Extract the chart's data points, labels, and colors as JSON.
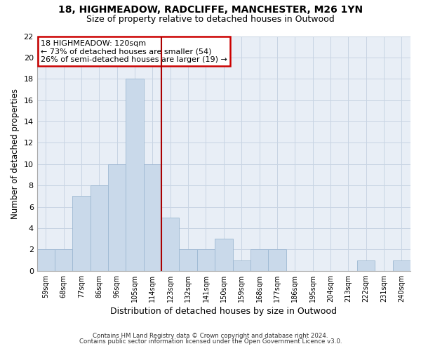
{
  "title1": "18, HIGHMEADOW, RADCLIFFE, MANCHESTER, M26 1YN",
  "title2": "Size of property relative to detached houses in Outwood",
  "xlabel": "Distribution of detached houses by size in Outwood",
  "ylabel": "Number of detached properties",
  "categories": [
    "59sqm",
    "68sqm",
    "77sqm",
    "86sqm",
    "96sqm",
    "105sqm",
    "114sqm",
    "123sqm",
    "132sqm",
    "141sqm",
    "150sqm",
    "159sqm",
    "168sqm",
    "177sqm",
    "186sqm",
    "195sqm",
    "204sqm",
    "213sqm",
    "222sqm",
    "231sqm",
    "240sqm"
  ],
  "values": [
    2,
    2,
    7,
    8,
    10,
    18,
    10,
    5,
    2,
    2,
    3,
    1,
    2,
    2,
    0,
    0,
    0,
    0,
    1,
    0,
    1
  ],
  "bar_color": "#c9d9ea",
  "bar_edgecolor": "#9db8d2",
  "vline_x": 6.5,
  "vline_color": "#aa0000",
  "annotation_line1": "18 HIGHMEADOW: 120sqm",
  "annotation_line2": "← 73% of detached houses are smaller (54)",
  "annotation_line3": "26% of semi-detached houses are larger (19) →",
  "annotation_box_edgecolor": "#cc0000",
  "ylim": [
    0,
    22
  ],
  "yticks": [
    0,
    2,
    4,
    6,
    8,
    10,
    12,
    14,
    16,
    18,
    20,
    22
  ],
  "footnote1": "Contains HM Land Registry data © Crown copyright and database right 2024.",
  "footnote2": "Contains public sector information licensed under the Open Government Licence v3.0.",
  "grid_color": "#c8d4e3",
  "background_color": "#e8eef6"
}
